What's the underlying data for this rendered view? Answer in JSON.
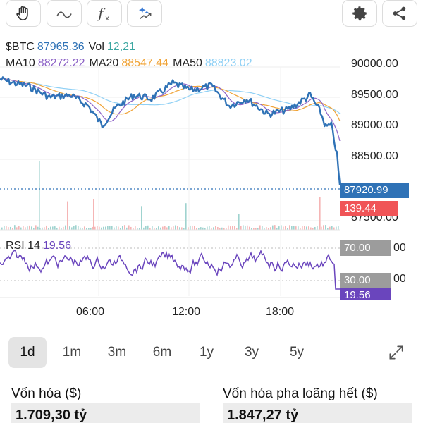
{
  "toolbar": {
    "icons": [
      "hand-icon",
      "wave-icon",
      "function-icon",
      "sparkle-icon"
    ],
    "right_icons": [
      "gear-icon",
      "share-icon"
    ]
  },
  "header": {
    "symbol": "$BTC",
    "price": "87965.36",
    "vol_label": "Vol",
    "vol_value": "12,21",
    "ma10_label": "MA10",
    "ma10_value": "88272.22",
    "ma20_label": "MA20",
    "ma20_value": "88547.44",
    "ma50_label": "MA50",
    "ma50_value": "88823.02"
  },
  "colors": {
    "price_line": "#2f72b6",
    "ma10": "#8e64c7",
    "ma20": "#f0a336",
    "ma50": "#8fd0f5",
    "rsi": "#6a45bd",
    "current_tag": "#2f72b6",
    "volume_tag": "#f05457",
    "rsi_band_tag": "#9c9c9c"
  },
  "price_axis": [
    "90000.00",
    "89500.00",
    "89000.00",
    "88500.00",
    "87500.00"
  ],
  "rsi_axis": [
    "00",
    "00"
  ],
  "current_price_tag": "87920.99",
  "volume_tag": "139.44",
  "rsi": {
    "label": "RSI 14",
    "value": "19.56",
    "upper_band": "70.00",
    "lower_band": "30.00",
    "value_tag": "19.56"
  },
  "time_axis": [
    "06:00",
    "12:00",
    "18:00"
  ],
  "ranges": [
    "1d",
    "1m",
    "3m",
    "6m",
    "1y",
    "3y",
    "5y"
  ],
  "active_range": "1d",
  "stats": {
    "market_cap_label": "Vốn hóa ($)",
    "market_cap_value": "1.709,30 tỷ",
    "fdv_label": "Vốn hóa pha loãng hết ($)",
    "fdv_value": "1.847,27 tỷ"
  }
}
